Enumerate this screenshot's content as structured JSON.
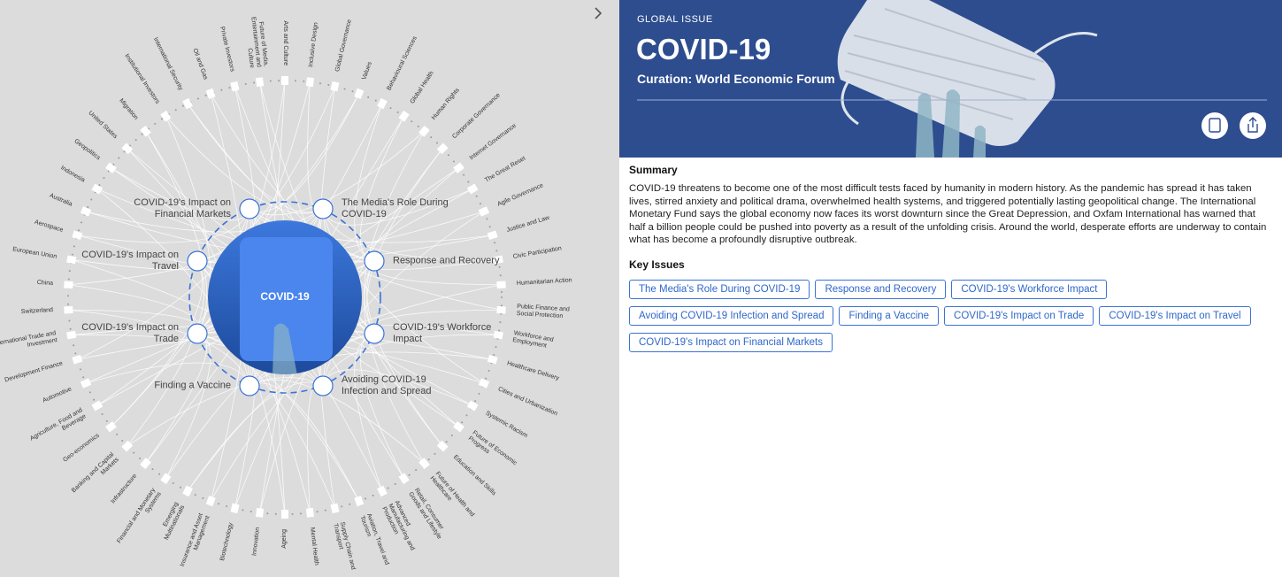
{
  "diagram": {
    "center": "COVID-19",
    "key_issues": [
      "The Media's Role During COVID-19",
      "Response and Recovery",
      "COVID-19's Workforce Impact",
      "Avoiding COVID-19 Infection and Spread",
      "Finding a Vaccine",
      "COVID-19's Impact on Trade",
      "COVID-19's Impact on Travel",
      "COVID-19's Impact on Financial Markets"
    ],
    "topics": [
      "International Security",
      "Oil and Gas",
      "Private Investors",
      "Future of Media, Entertainment and Culture",
      "Arts and Culture",
      "Inclusive Design",
      "Global Governance",
      "Values",
      "Behavioural Sciences",
      "Global Health",
      "Human Rights",
      "Corporate Governance",
      "Internet Governance",
      "The Great Reset",
      "Agile Governance",
      "Justice and Law",
      "Civic Participation",
      "Humanitarian Action",
      "Public Finance and Social Protection",
      "Workforce and Employment",
      "Healthcare Delivery",
      "Cities and Urbanization",
      "Systemic Racism",
      "Future of Economic Progress",
      "Education and Skills",
      "Future of Health and Healthcare",
      "Retail, Consumer Goods and Lifestyle",
      "Advanced Manufacturing and Production",
      "Aviation, Travel and Tourism",
      "Supply Chain and Transport",
      "Mental Health",
      "Ageing",
      "Innovation",
      "Biotechnology",
      "Insurance and Asset Management",
      "Emerging Multinationals",
      "Financial and Monetary Systems",
      "Infrastructure",
      "Banking and Capital Markets",
      "Geo-economics",
      "Agriculture, Food and Beverage",
      "Automotive",
      "Development Finance",
      "International Trade and Investment",
      "Switzerland",
      "China",
      "European Union",
      "Aerospace",
      "Australia",
      "Indonesia",
      "Geopolitics",
      "United States",
      "Migration",
      "Institutional Investors"
    ]
  },
  "header": {
    "eyebrow": "GLOBAL ISSUE",
    "title": "COVID-19",
    "curation": "Curation: World Economic Forum"
  },
  "summary": {
    "heading": "Summary",
    "text": "COVID-19 threatens to become one of the most difficult tests faced by humanity in modern history. As the pandemic has spread it has taken lives, stirred anxiety and political drama, overwhelmed health systems, and triggered potentially lasting geopolitical change. The International Monetary Fund says the global economy now faces its worst downturn since the Great Depression, and Oxfam International has warned that half a billion people could be pushed into poverty as a result of the unfolding crisis. Around the world, desperate efforts are underway to contain what has become a profoundly disruptive outbreak."
  },
  "key_issues": {
    "heading": "Key Issues",
    "items": [
      "The Media's Role During COVID-19",
      "Response and Recovery",
      "COVID-19's Workforce Impact",
      "Avoiding COVID-19 Infection and Spread",
      "Finding a Vaccine",
      "COVID-19's Impact on Trade",
      "COVID-19's Impact on Travel",
      "COVID-19's Impact on Financial Markets"
    ]
  }
}
